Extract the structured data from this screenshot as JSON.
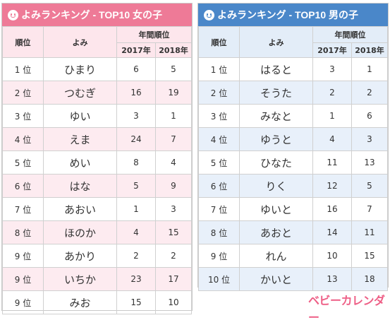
{
  "girls": {
    "title": "よみランキング - TOP10 女の子",
    "headers": {
      "rank": "順位",
      "yomi": "よみ",
      "yearly": "年間順位",
      "y2017": "2017年",
      "y2018": "2018年"
    },
    "rows": [
      {
        "rank": "1 位",
        "yomi": "ひまり",
        "y2017": "6",
        "y2018": "5"
      },
      {
        "rank": "2 位",
        "yomi": "つむぎ",
        "y2017": "16",
        "y2018": "19"
      },
      {
        "rank": "3 位",
        "yomi": "ゆい",
        "y2017": "3",
        "y2018": "1"
      },
      {
        "rank": "4 位",
        "yomi": "えま",
        "y2017": "24",
        "y2018": "7"
      },
      {
        "rank": "5 位",
        "yomi": "めい",
        "y2017": "8",
        "y2018": "4"
      },
      {
        "rank": "6 位",
        "yomi": "はな",
        "y2017": "5",
        "y2018": "9"
      },
      {
        "rank": "7 位",
        "yomi": "あおい",
        "y2017": "1",
        "y2018": "3"
      },
      {
        "rank": "8 位",
        "yomi": "ほのか",
        "y2017": "4",
        "y2018": "15"
      },
      {
        "rank": "9 位",
        "yomi": "あかり",
        "y2017": "2",
        "y2018": "2"
      },
      {
        "rank": "9 位",
        "yomi": "いちか",
        "y2017": "23",
        "y2018": "17"
      },
      {
        "rank": "9 位",
        "yomi": "みお",
        "y2017": "15",
        "y2018": "10"
      }
    ]
  },
  "boys": {
    "title": "よみランキング - TOP10 男の子",
    "headers": {
      "rank": "順位",
      "yomi": "よみ",
      "yearly": "年間順位",
      "y2017": "2017年",
      "y2018": "2018年"
    },
    "rows": [
      {
        "rank": "1 位",
        "yomi": "はると",
        "y2017": "3",
        "y2018": "1"
      },
      {
        "rank": "2 位",
        "yomi": "そうた",
        "y2017": "2",
        "y2018": "2"
      },
      {
        "rank": "3 位",
        "yomi": "みなと",
        "y2017": "1",
        "y2018": "6"
      },
      {
        "rank": "4 位",
        "yomi": "ゆうと",
        "y2017": "4",
        "y2018": "3"
      },
      {
        "rank": "5 位",
        "yomi": "ひなた",
        "y2017": "11",
        "y2018": "13"
      },
      {
        "rank": "6 位",
        "yomi": "りく",
        "y2017": "12",
        "y2018": "5"
      },
      {
        "rank": "7 位",
        "yomi": "ゆいと",
        "y2017": "16",
        "y2018": "7"
      },
      {
        "rank": "8 位",
        "yomi": "あおと",
        "y2017": "14",
        "y2018": "11"
      },
      {
        "rank": "9 位",
        "yomi": "れん",
        "y2017": "10",
        "y2018": "15"
      },
      {
        "rank": "10 位",
        "yomi": "かいと",
        "y2017": "13",
        "y2018": "18"
      }
    ]
  },
  "logo": {
    "text": "ベビーカレンダー"
  },
  "colors": {
    "girls_accent": "#ee7a97",
    "boys_accent": "#4a87c9"
  },
  "icons": {
    "header_icon": "smiley-face-icon"
  }
}
